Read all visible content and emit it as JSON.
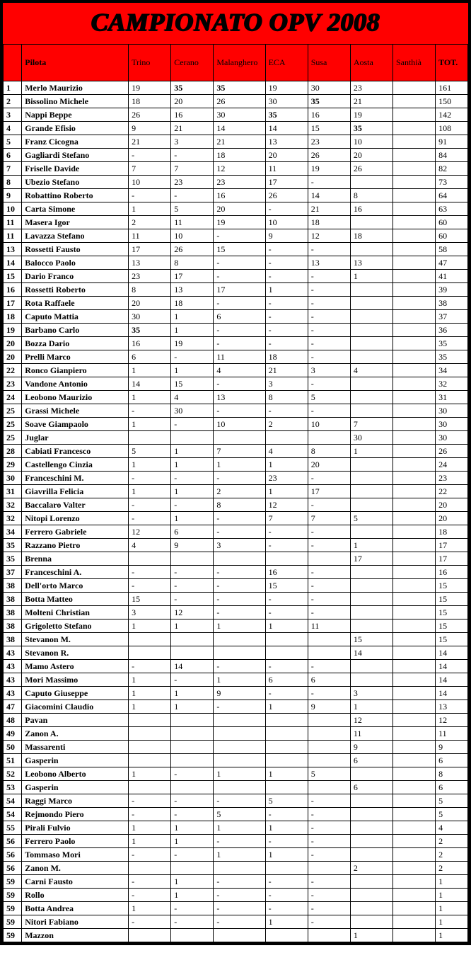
{
  "title": "CAMPIONATO OPV 2008",
  "columns": [
    "",
    "Pilota",
    "Trino",
    "Cerano",
    "Malanghero",
    "ECA",
    "Susa",
    "Aosta",
    "Santhià",
    "TOT."
  ],
  "column_bold": [
    false,
    true,
    false,
    false,
    false,
    false,
    false,
    false,
    false,
    true
  ],
  "colors": {
    "header_bg": "#ff0000",
    "border": "#000000",
    "page_bg": "#000000",
    "cell_bg": "#ffffff"
  },
  "rows": [
    {
      "pos": "1",
      "name": "Merlo Maurizio",
      "v": [
        "19",
        "35",
        "35",
        "19",
        "30",
        "23",
        ""
      ],
      "bold": [
        0,
        1,
        1,
        0,
        0,
        0,
        0
      ],
      "tot": "161"
    },
    {
      "pos": "2",
      "name": "Bissolino Michele",
      "v": [
        "18",
        "20",
        "26",
        "30",
        "35",
        "21",
        ""
      ],
      "bold": [
        0,
        0,
        0,
        0,
        1,
        0,
        0
      ],
      "tot": "150"
    },
    {
      "pos": "3",
      "name": "Nappi Beppe",
      "v": [
        "26",
        "16",
        "30",
        "35",
        "16",
        "19",
        ""
      ],
      "bold": [
        0,
        0,
        0,
        1,
        0,
        0,
        0
      ],
      "tot": "142"
    },
    {
      "pos": "4",
      "name": "Grande Efisio",
      "v": [
        "9",
        "21",
        "14",
        "14",
        "15",
        "35",
        ""
      ],
      "bold": [
        0,
        0,
        0,
        0,
        0,
        1,
        0
      ],
      "tot": "108"
    },
    {
      "pos": "5",
      "name": "Franz Cicogna",
      "v": [
        "21",
        "3",
        "21",
        "13",
        "23",
        "10",
        ""
      ],
      "bold": [
        0,
        0,
        0,
        0,
        0,
        0,
        0
      ],
      "tot": "91"
    },
    {
      "pos": "6",
      "name": "Gagliardi Stefano",
      "v": [
        "-",
        "-",
        "18",
        "20",
        "26",
        "20",
        ""
      ],
      "bold": [
        0,
        0,
        0,
        0,
        0,
        0,
        0
      ],
      "tot": "84"
    },
    {
      "pos": "7",
      "name": "Friselle Davide",
      "v": [
        "7",
        "7",
        "12",
        "11",
        "19",
        "26",
        ""
      ],
      "bold": [
        0,
        0,
        0,
        0,
        0,
        0,
        0
      ],
      "tot": "82"
    },
    {
      "pos": "8",
      "name": "Ubezio Stefano",
      "v": [
        "10",
        "23",
        "23",
        "17",
        "-",
        "",
        ""
      ],
      "bold": [
        0,
        0,
        0,
        0,
        0,
        0,
        0
      ],
      "tot": "73"
    },
    {
      "pos": "9",
      "name": "Robattino Roberto",
      "v": [
        "-",
        "-",
        "16",
        "26",
        "14",
        "8",
        ""
      ],
      "bold": [
        0,
        0,
        0,
        0,
        0,
        0,
        0
      ],
      "tot": "64"
    },
    {
      "pos": "10",
      "name": "Carta Simone",
      "v": [
        "1",
        "5",
        "20",
        "-",
        "21",
        "16",
        ""
      ],
      "bold": [
        0,
        0,
        0,
        0,
        0,
        0,
        0
      ],
      "tot": "63"
    },
    {
      "pos": "11",
      "name": "Masera Igor",
      "v": [
        "2",
        "11",
        "19",
        "10",
        "18",
        "",
        ""
      ],
      "bold": [
        0,
        0,
        0,
        0,
        0,
        0,
        0
      ],
      "tot": "60"
    },
    {
      "pos": "11",
      "name": "Lavazza Stefano",
      "v": [
        "11",
        "10",
        "-",
        "9",
        "12",
        "18",
        ""
      ],
      "bold": [
        0,
        0,
        0,
        0,
        0,
        0,
        0
      ],
      "tot": "60"
    },
    {
      "pos": "13",
      "name": "Rossetti Fausto",
      "v": [
        "17",
        "26",
        "15",
        "-",
        "-",
        "",
        ""
      ],
      "bold": [
        0,
        0,
        0,
        0,
        0,
        0,
        0
      ],
      "tot": "58"
    },
    {
      "pos": "14",
      "name": "Balocco Paolo",
      "v": [
        "13",
        "8",
        "-",
        "-",
        "13",
        "13",
        ""
      ],
      "bold": [
        0,
        0,
        0,
        0,
        0,
        0,
        0
      ],
      "tot": "47"
    },
    {
      "pos": "15",
      "name": "Dario Franco",
      "v": [
        "23",
        "17",
        "-",
        "-",
        "-",
        "1",
        ""
      ],
      "bold": [
        0,
        0,
        0,
        0,
        0,
        0,
        0
      ],
      "tot": "41"
    },
    {
      "pos": "16",
      "name": "Rossetti Roberto",
      "v": [
        "8",
        "13",
        "17",
        "1",
        "-",
        "",
        ""
      ],
      "bold": [
        0,
        0,
        0,
        0,
        0,
        0,
        0
      ],
      "tot": "39"
    },
    {
      "pos": "17",
      "name": "Rota Raffaele",
      "v": [
        "20",
        "18",
        "-",
        "-",
        "-",
        "",
        ""
      ],
      "bold": [
        0,
        0,
        0,
        0,
        0,
        0,
        0
      ],
      "tot": "38"
    },
    {
      "pos": "18",
      "name": "Caputo Mattia",
      "v": [
        "30",
        "1",
        "6",
        "-",
        "-",
        "",
        ""
      ],
      "bold": [
        0,
        0,
        0,
        0,
        0,
        0,
        0
      ],
      "tot": "37"
    },
    {
      "pos": "19",
      "name": "Barbano Carlo",
      "v": [
        "35",
        "1",
        "-",
        "-",
        "-",
        "",
        ""
      ],
      "bold": [
        1,
        0,
        0,
        0,
        0,
        0,
        0
      ],
      "tot": "36"
    },
    {
      "pos": "20",
      "name": "Bozza Dario",
      "v": [
        "16",
        "19",
        "-",
        "-",
        "-",
        "",
        ""
      ],
      "bold": [
        0,
        0,
        0,
        0,
        0,
        0,
        0
      ],
      "tot": "35"
    },
    {
      "pos": "20",
      "name": "Prelli Marco",
      "v": [
        "6",
        "-",
        "11",
        "18",
        "-",
        "",
        ""
      ],
      "bold": [
        0,
        0,
        0,
        0,
        0,
        0,
        0
      ],
      "tot": "35"
    },
    {
      "pos": "22",
      "name": "Ronco Gianpiero",
      "v": [
        "1",
        "1",
        "4",
        "21",
        "3",
        "4",
        ""
      ],
      "bold": [
        0,
        0,
        0,
        0,
        0,
        0,
        0
      ],
      "tot": "34"
    },
    {
      "pos": "23",
      "name": "Vandone Antonio",
      "v": [
        "14",
        "15",
        "-",
        "3",
        "-",
        "",
        ""
      ],
      "bold": [
        0,
        0,
        0,
        0,
        0,
        0,
        0
      ],
      "tot": "32"
    },
    {
      "pos": "24",
      "name": "Leobono Maurizio",
      "v": [
        "1",
        "4",
        "13",
        "8",
        "5",
        "",
        ""
      ],
      "bold": [
        0,
        0,
        0,
        0,
        0,
        0,
        0
      ],
      "tot": "31"
    },
    {
      "pos": "25",
      "name": "Grassi Michele",
      "v": [
        "-",
        "30",
        "-",
        "-",
        "-",
        "",
        ""
      ],
      "bold": [
        0,
        0,
        0,
        0,
        0,
        0,
        0
      ],
      "tot": "30"
    },
    {
      "pos": "25",
      "name": "Soave Giampaolo",
      "v": [
        "1",
        "-",
        "10",
        "2",
        "10",
        "7",
        ""
      ],
      "bold": [
        0,
        0,
        0,
        0,
        0,
        0,
        0
      ],
      "tot": "30"
    },
    {
      "pos": "25",
      "name": "Juglar",
      "v": [
        "",
        "",
        "",
        "",
        "",
        "30",
        ""
      ],
      "bold": [
        0,
        0,
        0,
        0,
        0,
        0,
        0
      ],
      "tot": "30"
    },
    {
      "pos": "28",
      "name": "Cabiati Francesco",
      "v": [
        "5",
        "1",
        "7",
        "4",
        "8",
        "1",
        ""
      ],
      "bold": [
        0,
        0,
        0,
        0,
        0,
        0,
        0
      ],
      "tot": "26"
    },
    {
      "pos": "29",
      "name": "Castellengo Cinzia",
      "v": [
        "1",
        "1",
        "1",
        "1",
        "20",
        "",
        ""
      ],
      "bold": [
        0,
        0,
        0,
        0,
        0,
        0,
        0
      ],
      "tot": "24"
    },
    {
      "pos": "30",
      "name": "Franceschini M.",
      "v": [
        "-",
        "-",
        "-",
        "23",
        "-",
        "",
        ""
      ],
      "bold": [
        0,
        0,
        0,
        0,
        0,
        0,
        0
      ],
      "tot": "23"
    },
    {
      "pos": "31",
      "name": "Giavrilla Felicia",
      "v": [
        "1",
        "1",
        "2",
        "1",
        "17",
        "",
        ""
      ],
      "bold": [
        0,
        0,
        0,
        0,
        0,
        0,
        0
      ],
      "tot": "22"
    },
    {
      "pos": "32",
      "name": "Baccalaro Valter",
      "v": [
        "-",
        "-",
        "8",
        "12",
        "-",
        "",
        ""
      ],
      "bold": [
        0,
        0,
        0,
        0,
        0,
        0,
        0
      ],
      "tot": "20"
    },
    {
      "pos": "32",
      "name": "Nitopi Lorenzo",
      "v": [
        "-",
        "1",
        "-",
        "7",
        "7",
        "5",
        ""
      ],
      "bold": [
        0,
        0,
        0,
        0,
        0,
        0,
        0
      ],
      "tot": "20"
    },
    {
      "pos": "34",
      "name": "Ferrero Gabriele",
      "v": [
        "12",
        "6",
        "-",
        "-",
        "-",
        "",
        ""
      ],
      "bold": [
        0,
        0,
        0,
        0,
        0,
        0,
        0
      ],
      "tot": "18"
    },
    {
      "pos": "35",
      "name": "Razzano Pietro",
      "v": [
        "4",
        "9",
        "3",
        "-",
        "-",
        "1",
        ""
      ],
      "bold": [
        0,
        0,
        0,
        0,
        0,
        0,
        0
      ],
      "tot": "17"
    },
    {
      "pos": "35",
      "name": "Brenna",
      "v": [
        "",
        "",
        "",
        "",
        "",
        "17",
        ""
      ],
      "bold": [
        0,
        0,
        0,
        0,
        0,
        0,
        0
      ],
      "tot": "17"
    },
    {
      "pos": "37",
      "name": "Franceschini A.",
      "v": [
        "-",
        "-",
        "-",
        "16",
        "-",
        "",
        ""
      ],
      "bold": [
        0,
        0,
        0,
        0,
        0,
        0,
        0
      ],
      "tot": "16"
    },
    {
      "pos": "38",
      "name": "Dell'orto Marco",
      "v": [
        "-",
        "-",
        "-",
        "15",
        "-",
        "",
        ""
      ],
      "bold": [
        0,
        0,
        0,
        0,
        0,
        0,
        0
      ],
      "tot": "15"
    },
    {
      "pos": "38",
      "name": "Botta Matteo",
      "v": [
        "15",
        "-",
        "-",
        "-",
        "-",
        "",
        ""
      ],
      "bold": [
        0,
        0,
        0,
        0,
        0,
        0,
        0
      ],
      "tot": "15"
    },
    {
      "pos": "38",
      "name": "Molteni Christian",
      "v": [
        "3",
        "12",
        "-",
        "-",
        "-",
        "",
        ""
      ],
      "bold": [
        0,
        0,
        0,
        0,
        0,
        0,
        0
      ],
      "tot": "15"
    },
    {
      "pos": "38",
      "name": "Grigoletto Stefano",
      "v": [
        "1",
        "1",
        "1",
        "1",
        "11",
        "",
        ""
      ],
      "bold": [
        0,
        0,
        0,
        0,
        0,
        0,
        0
      ],
      "tot": "15"
    },
    {
      "pos": "38",
      "name": "Stevanon M.",
      "v": [
        "",
        "",
        "",
        "",
        "",
        "15",
        ""
      ],
      "bold": [
        0,
        0,
        0,
        0,
        0,
        0,
        0
      ],
      "tot": "15"
    },
    {
      "pos": "43",
      "name": "Stevanon R.",
      "v": [
        "",
        "",
        "",
        "",
        "",
        "14",
        ""
      ],
      "bold": [
        0,
        0,
        0,
        0,
        0,
        0,
        0
      ],
      "tot": "14"
    },
    {
      "pos": "43",
      "name": "Mamo Astero",
      "v": [
        "-",
        "14",
        "-",
        "-",
        "-",
        "",
        ""
      ],
      "bold": [
        0,
        0,
        0,
        0,
        0,
        0,
        0
      ],
      "tot": "14"
    },
    {
      "pos": "43",
      "name": "Mori Massimo",
      "v": [
        "1",
        "-",
        "1",
        "6",
        "6",
        "",
        ""
      ],
      "bold": [
        0,
        0,
        0,
        0,
        0,
        0,
        0
      ],
      "tot": "14"
    },
    {
      "pos": "43",
      "name": "Caputo Giuseppe",
      "v": [
        "1",
        "1",
        "9",
        "-",
        "-",
        "3",
        ""
      ],
      "bold": [
        0,
        0,
        0,
        0,
        0,
        0,
        0
      ],
      "tot": "14"
    },
    {
      "pos": "47",
      "name": "Giacomini Claudio",
      "v": [
        "1",
        "1",
        "-",
        "1",
        "9",
        "1",
        ""
      ],
      "bold": [
        0,
        0,
        0,
        0,
        0,
        0,
        0
      ],
      "tot": "13"
    },
    {
      "pos": "48",
      "name": "Pavan",
      "v": [
        "",
        "",
        "",
        "",
        "",
        "12",
        ""
      ],
      "bold": [
        0,
        0,
        0,
        0,
        0,
        0,
        0
      ],
      "tot": "12"
    },
    {
      "pos": "49",
      "name": "Zanon A.",
      "v": [
        "",
        "",
        "",
        "",
        "",
        "11",
        ""
      ],
      "bold": [
        0,
        0,
        0,
        0,
        0,
        0,
        0
      ],
      "tot": "11"
    },
    {
      "pos": "50",
      "name": "Massarenti",
      "v": [
        "",
        "",
        "",
        "",
        "",
        "9",
        ""
      ],
      "bold": [
        0,
        0,
        0,
        0,
        0,
        0,
        0
      ],
      "tot": "9"
    },
    {
      "pos": "51",
      "name": "Gasperin",
      "v": [
        "",
        "",
        "",
        "",
        "",
        "6",
        ""
      ],
      "bold": [
        0,
        0,
        0,
        0,
        0,
        0,
        0
      ],
      "tot": "6"
    },
    {
      "pos": "52",
      "name": "Leobono Alberto",
      "v": [
        "1",
        "-",
        "1",
        "1",
        "5",
        "",
        ""
      ],
      "bold": [
        0,
        0,
        0,
        0,
        0,
        0,
        0
      ],
      "tot": "8"
    },
    {
      "pos": "53",
      "name": "Gasperin",
      "v": [
        "",
        "",
        "",
        "",
        "",
        "6",
        ""
      ],
      "bold": [
        0,
        0,
        0,
        0,
        0,
        0,
        0
      ],
      "tot": "6"
    },
    {
      "pos": "54",
      "name": "Raggi Marco",
      "v": [
        "-",
        "-",
        "-",
        "5",
        "-",
        "",
        ""
      ],
      "bold": [
        0,
        0,
        0,
        0,
        0,
        0,
        0
      ],
      "tot": "5"
    },
    {
      "pos": "54",
      "name": "Rejmondo Piero",
      "v": [
        "-",
        "-",
        "5",
        "-",
        "-",
        "",
        ""
      ],
      "bold": [
        0,
        0,
        0,
        0,
        0,
        0,
        0
      ],
      "tot": "5"
    },
    {
      "pos": "55",
      "name": "Pirali Fulvio",
      "v": [
        "1",
        "1",
        "1",
        "1",
        "-",
        "",
        ""
      ],
      "bold": [
        0,
        0,
        0,
        0,
        0,
        0,
        0
      ],
      "tot": "4"
    },
    {
      "pos": "56",
      "name": "Ferrero Paolo",
      "v": [
        "1",
        "1",
        "-",
        "-",
        "-",
        "",
        ""
      ],
      "bold": [
        0,
        0,
        0,
        0,
        0,
        0,
        0
      ],
      "tot": "2"
    },
    {
      "pos": "56",
      "name": "Tommaso Mori",
      "v": [
        "-",
        "-",
        "1",
        "1",
        "-",
        "",
        ""
      ],
      "bold": [
        0,
        0,
        0,
        0,
        0,
        0,
        0
      ],
      "tot": "2"
    },
    {
      "pos": "56",
      "name": "Zanon M.",
      "v": [
        "",
        "",
        "",
        "",
        "",
        "2",
        ""
      ],
      "bold": [
        0,
        0,
        0,
        0,
        0,
        0,
        0
      ],
      "tot": "2"
    },
    {
      "pos": "59",
      "name": "Carni Fausto",
      "v": [
        "-",
        "1",
        "-",
        "-",
        "-",
        "",
        ""
      ],
      "bold": [
        0,
        0,
        0,
        0,
        0,
        0,
        0
      ],
      "tot": "1"
    },
    {
      "pos": "59",
      "name": "Rollo",
      "v": [
        "-",
        "1",
        "-",
        "-",
        "-",
        "",
        ""
      ],
      "bold": [
        0,
        0,
        0,
        0,
        0,
        0,
        0
      ],
      "tot": "1"
    },
    {
      "pos": "59",
      "name": "Botta Andrea",
      "v": [
        "1",
        "-",
        "-",
        "-",
        "-",
        "",
        ""
      ],
      "bold": [
        0,
        0,
        0,
        0,
        0,
        0,
        0
      ],
      "tot": "1"
    },
    {
      "pos": "59",
      "name": "Nitori Fabiano",
      "v": [
        "-",
        "-",
        "-",
        "1",
        "-",
        "",
        ""
      ],
      "bold": [
        0,
        0,
        0,
        0,
        0,
        0,
        0
      ],
      "tot": "1"
    },
    {
      "pos": "59",
      "name": "Mazzon",
      "v": [
        "",
        "",
        "",
        "",
        "",
        "1",
        ""
      ],
      "bold": [
        0,
        0,
        0,
        0,
        0,
        0,
        0
      ],
      "tot": "1"
    }
  ]
}
